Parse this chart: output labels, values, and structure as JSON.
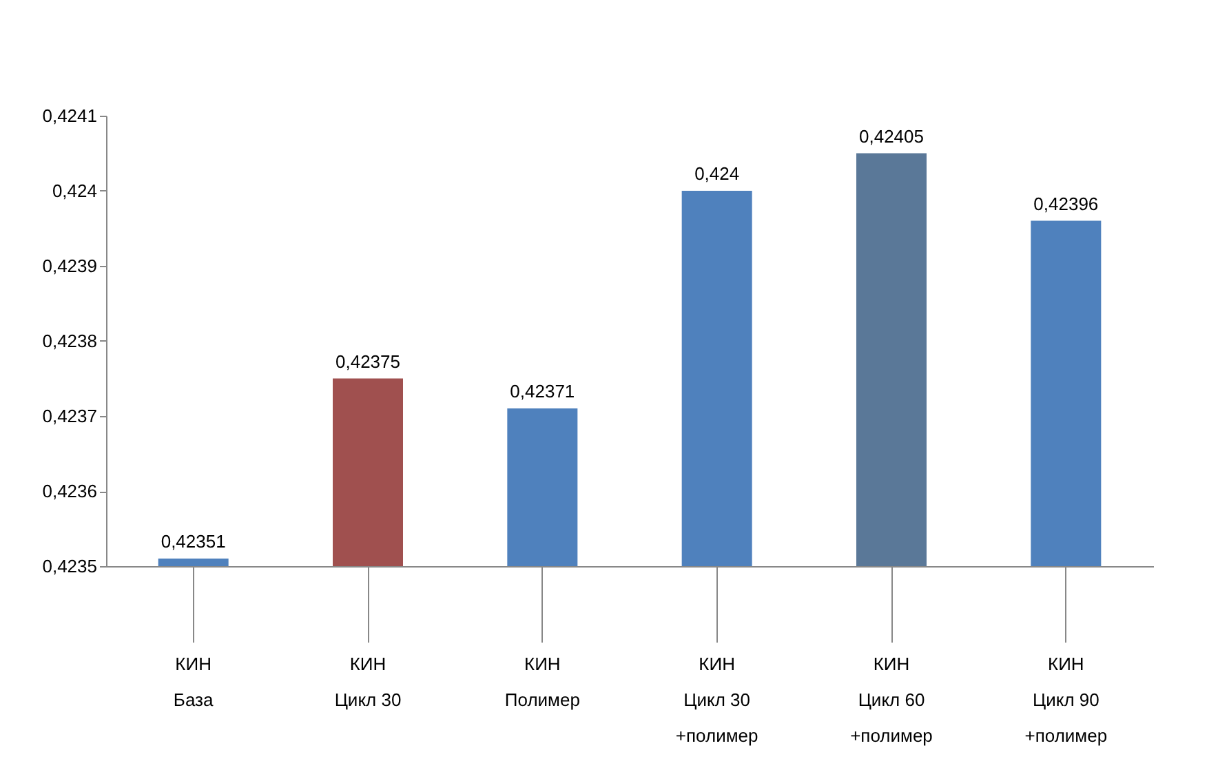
{
  "chart_data": {
    "type": "bar",
    "categories": [
      "КИН\nБаза",
      "КИН\nЦикл 30",
      "КИН\nПолимер",
      "КИН\nЦикл 30\n+полимер",
      "КИН\nЦикл 60\n+полимер",
      "КИН\nЦикл 90\n+полимер"
    ],
    "values": [
      0.42351,
      0.42375,
      0.42371,
      0.424,
      0.42405,
      0.42396
    ],
    "colors": [
      "#4f81bd",
      "#a0504f",
      "#4f81bd",
      "#4f81bd",
      "#5a7898",
      "#4f81bd"
    ],
    "value_labels": [
      "0,42351",
      "0,42375",
      "0,42371",
      "0,424",
      "0,42405",
      "0,42396"
    ],
    "ylim": [
      0.4235,
      0.4241
    ],
    "yticks": [
      {
        "value": 0.4235,
        "label": "0,4235"
      },
      {
        "value": 0.4236,
        "label": "0,4236"
      },
      {
        "value": 0.4237,
        "label": "0,4237"
      },
      {
        "value": 0.4238,
        "label": "0,4238"
      },
      {
        "value": 0.4239,
        "label": "0,4239"
      },
      {
        "value": 0.424,
        "label": "0,424"
      },
      {
        "value": 0.4241,
        "label": "0,4241"
      }
    ],
    "grid": false
  }
}
